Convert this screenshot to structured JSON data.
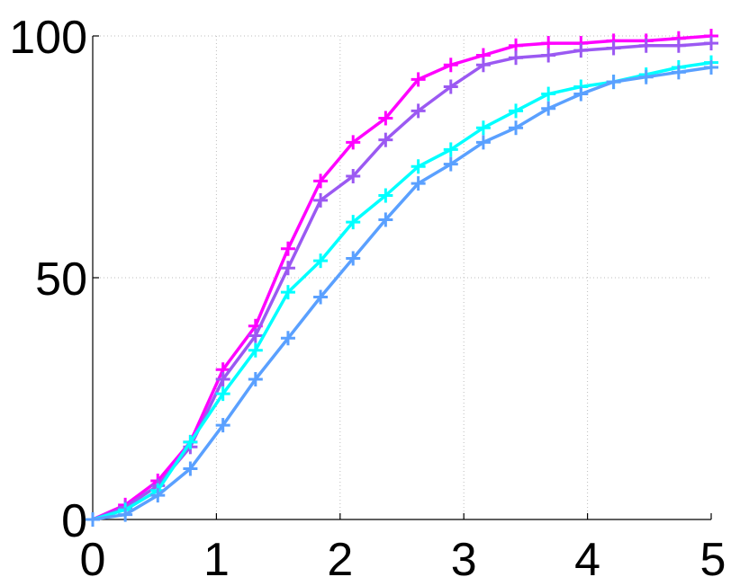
{
  "chart_data": {
    "type": "line",
    "title": "",
    "xlabel": "",
    "ylabel": "",
    "xlim": [
      0,
      5
    ],
    "ylim": [
      0,
      100
    ],
    "xticks": [
      0,
      1,
      2,
      3,
      4,
      5
    ],
    "yticks": [
      0,
      50,
      100
    ],
    "xtick_labels": [
      "0",
      "1",
      "2",
      "3",
      "4",
      "5"
    ],
    "ytick_labels": [
      "0",
      "50",
      "100"
    ],
    "grid": true,
    "legend": false,
    "marker": "plus",
    "x": [
      0,
      0.263,
      0.526,
      0.789,
      1.053,
      1.316,
      1.579,
      1.842,
      2.105,
      2.368,
      2.632,
      2.895,
      3.158,
      3.421,
      3.684,
      3.947,
      4.211,
      4.474,
      4.737,
      5.0
    ],
    "series": [
      {
        "color": "#ff00ff",
        "values": [
          0,
          3,
          8,
          16,
          31,
          40,
          56,
          70,
          78,
          83,
          91,
          94,
          96,
          98,
          98.5,
          98.5,
          99,
          99,
          99.5,
          100
        ]
      },
      {
        "color": "#9b59f2",
        "values": [
          0,
          2.5,
          7,
          15,
          29,
          38,
          52,
          66,
          71,
          78.5,
          84.5,
          89.5,
          94,
          95.5,
          96,
          97,
          97.5,
          98,
          98,
          98.5
        ]
      },
      {
        "color": "#00ffff",
        "values": [
          0,
          2,
          6,
          16,
          26,
          35,
          47,
          53.5,
          61.5,
          67,
          73,
          76.5,
          81,
          84.5,
          88,
          89.5,
          90.5,
          92,
          93.5,
          94.5
        ]
      },
      {
        "color": "#5aa0ff",
        "values": [
          0,
          1,
          5,
          10.5,
          19.5,
          29,
          37.5,
          46,
          54,
          62,
          69.5,
          73.5,
          78,
          81,
          85,
          88,
          90.5,
          91.5,
          92.5,
          93.5
        ]
      }
    ]
  }
}
